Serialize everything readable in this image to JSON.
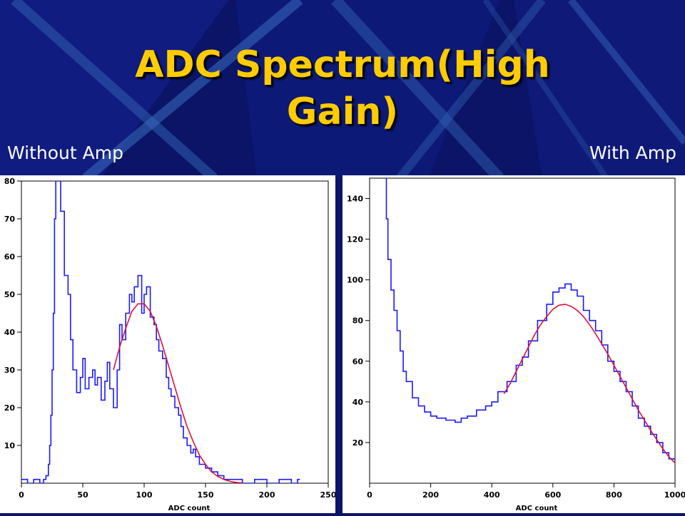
{
  "slide": {
    "title_line1": "ADC Spectrum(High",
    "title_line2": "Gain)",
    "left_caption": "Without Amp",
    "right_caption": "With Amp"
  },
  "colors": {
    "background": "#0b1466",
    "title": "#ffcc00",
    "histogram": "#1a1aff",
    "fit": "#e0103a"
  },
  "chart_data": [
    {
      "type": "line",
      "xlabel": "ADC count",
      "xlim": [
        0,
        250
      ],
      "ylim": [
        0,
        80
      ],
      "xticks": [
        0,
        50,
        100,
        150,
        200,
        250
      ],
      "yticks": [
        10,
        20,
        30,
        40,
        50,
        60,
        70,
        80
      ],
      "series": [
        {
          "kind": "histogram",
          "x": [
            0,
            5,
            10,
            15,
            18,
            20,
            22,
            23,
            24,
            25,
            26,
            27,
            28,
            30,
            32,
            35,
            38,
            40,
            42,
            45,
            48,
            50,
            52,
            55,
            58,
            60,
            62,
            65,
            68,
            70,
            72,
            75,
            78,
            80,
            82,
            85,
            88,
            90,
            92,
            95,
            98,
            100,
            102,
            105,
            108,
            110,
            112,
            115,
            118,
            120,
            122,
            125,
            128,
            130,
            132,
            135,
            138,
            140,
            142,
            145,
            150,
            155,
            160,
            165,
            170,
            175,
            180,
            190,
            200,
            210,
            220,
            225
          ],
          "y": [
            1,
            0,
            1,
            0,
            1,
            2,
            5,
            10,
            18,
            30,
            45,
            70,
            80,
            80,
            72,
            55,
            50,
            38,
            30,
            24,
            28,
            33,
            25,
            28,
            30,
            26,
            28,
            22,
            27,
            32,
            25,
            20,
            30,
            42,
            38,
            45,
            50,
            48,
            52,
            55,
            45,
            50,
            52,
            44,
            42,
            38,
            35,
            33,
            28,
            25,
            23,
            20,
            18,
            15,
            12,
            10,
            8,
            9,
            7,
            5,
            4,
            3,
            2,
            1,
            1,
            1,
            0,
            1,
            0,
            1,
            0,
            1
          ]
        },
        {
          "kind": "fit",
          "x": [
            75,
            80,
            85,
            90,
            95,
            100,
            105,
            110,
            115,
            120,
            125,
            130,
            135,
            140,
            145,
            150,
            155,
            160,
            165,
            170,
            175,
            180
          ],
          "y": [
            30,
            36,
            41,
            45.5,
            47.5,
            47.5,
            45.5,
            41.5,
            36.5,
            31,
            25.5,
            20,
            15,
            11,
            7.5,
            5,
            3,
            1.8,
            1,
            0.5,
            0.2,
            0.1
          ]
        }
      ]
    },
    {
      "type": "line",
      "xlabel": "ADC count",
      "xlim": [
        0,
        1000
      ],
      "ylim": [
        0,
        150
      ],
      "xticks": [
        0,
        200,
        400,
        600,
        800,
        1000
      ],
      "yticks": [
        20,
        40,
        60,
        80,
        100,
        120,
        140
      ],
      "series": [
        {
          "kind": "histogram",
          "x": [
            50,
            55,
            60,
            70,
            80,
            90,
            100,
            110,
            120,
            140,
            160,
            180,
            200,
            220,
            250,
            280,
            300,
            320,
            350,
            380,
            400,
            420,
            450,
            480,
            500,
            520,
            550,
            580,
            600,
            620,
            640,
            660,
            680,
            700,
            720,
            740,
            760,
            780,
            800,
            820,
            840,
            860,
            880,
            900,
            920,
            940,
            960,
            980,
            1000
          ],
          "y": [
            150,
            130,
            110,
            95,
            85,
            75,
            65,
            55,
            50,
            42,
            38,
            35,
            33,
            32,
            31,
            30,
            32,
            33,
            36,
            38,
            40,
            45,
            50,
            58,
            62,
            70,
            80,
            88,
            94,
            96,
            98,
            95,
            92,
            85,
            80,
            75,
            68,
            60,
            55,
            50,
            45,
            38,
            32,
            28,
            24,
            20,
            15,
            12,
            10
          ]
        },
        {
          "kind": "fit",
          "x": [
            440,
            460,
            480,
            500,
            520,
            540,
            560,
            580,
            600,
            620,
            640,
            660,
            680,
            700,
            720,
            740,
            760,
            780,
            800,
            820,
            840,
            860,
            880,
            900,
            920,
            940,
            960,
            980,
            1000
          ],
          "y": [
            44,
            49,
            55,
            61,
            67,
            73,
            78,
            82,
            85.5,
            87.5,
            88,
            87,
            85,
            82,
            78,
            73.5,
            68.5,
            63.5,
            58,
            52.5,
            47,
            41.5,
            36,
            31,
            26,
            21.5,
            17,
            13,
            10
          ]
        }
      ]
    }
  ]
}
